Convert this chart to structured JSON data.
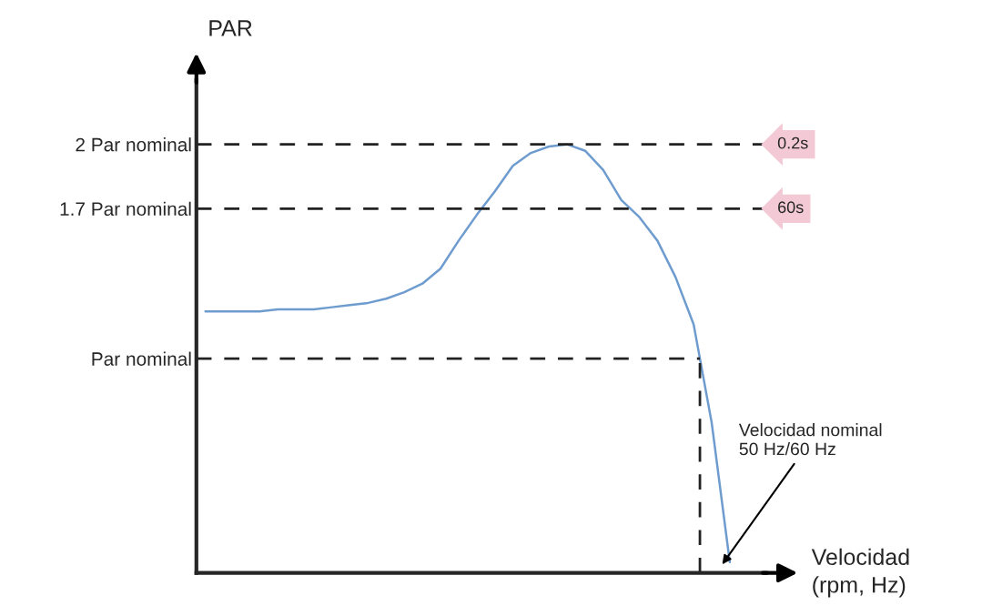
{
  "chart_data": {
    "type": "line",
    "ylabel": "PAR",
    "xlabel": "Velocidad\n(rpm, Hz)",
    "categories": [
      null,
      null,
      null,
      null,
      null,
      null,
      null,
      null,
      null,
      null,
      null,
      null,
      null,
      null,
      null,
      null,
      null,
      null,
      null,
      null,
      null,
      null,
      null,
      null,
      null,
      null,
      null,
      null,
      null,
      null
    ],
    "series": [
      {
        "color": "#6f9ccf",
        "values": [
          1.22,
          1.22,
          1.22,
          1.22,
          1.23,
          1.23,
          1.23,
          1.24,
          1.25,
          1.26,
          1.28,
          1.31,
          1.35,
          1.42,
          1.55,
          1.67,
          1.78,
          1.9,
          1.96,
          1.99,
          2.0,
          1.97,
          1.88,
          1.74,
          1.66,
          1.55,
          1.38,
          1.16,
          0.7,
          0.05
        ]
      }
    ],
    "ylim": [
      0,
      2.3
    ],
    "yticks": [
      {
        "value": 1,
        "label": "Par nominal"
      },
      {
        "value": 1.7,
        "label": "1.7 Par nominal"
      },
      {
        "value": 2,
        "label": "2 Par nominal"
      }
    ],
    "ref_lines": [
      {
        "axis": "y",
        "value": 2,
        "label": "0.2s",
        "line_style": "dashed",
        "color": "#222222"
      },
      {
        "axis": "y",
        "value": 1.7,
        "label": "60s",
        "line_style": "dashed",
        "color": "#222222"
      },
      {
        "axis": "y",
        "value": 1,
        "line_style": "dashed",
        "color": "#222222"
      }
    ],
    "annotations": [
      "Velocidad nominal\n50 Hz/60 Hz"
    ],
    "grid": false,
    "legend": false
  }
}
